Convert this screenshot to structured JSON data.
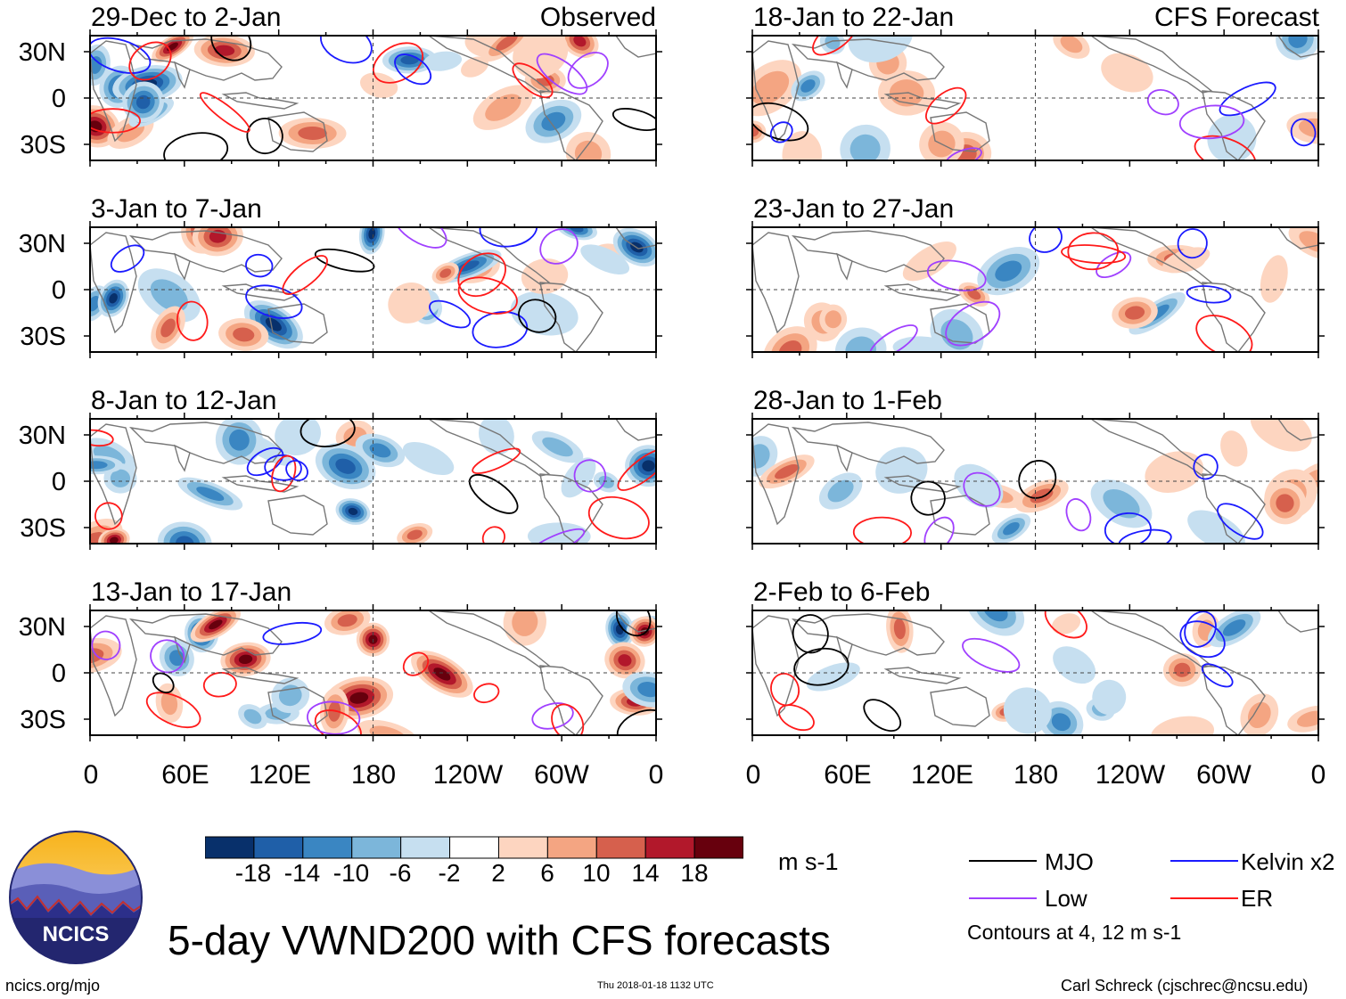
{
  "header": {
    "observed_label": "Observed",
    "forecast_label": "CFS Forecast"
  },
  "panels_left": [
    {
      "title": "29-Dec to 2-Jan"
    },
    {
      "title": "3-Jan to 7-Jan"
    },
    {
      "title": "8-Jan to 12-Jan"
    },
    {
      "title": "13-Jan to 17-Jan"
    }
  ],
  "panels_right": [
    {
      "title": "18-Jan to 22-Jan"
    },
    {
      "title": "23-Jan to 27-Jan"
    },
    {
      "title": "28-Jan to 1-Feb"
    },
    {
      "title": "2-Feb to 6-Feb"
    }
  ],
  "lat_labels": [
    "30N",
    "0",
    "30S"
  ],
  "lon_labels": [
    "0",
    "60E",
    "120E",
    "180",
    "120W",
    "60W",
    "0"
  ],
  "colorbar": {
    "ticks": [
      "-18",
      "-14",
      "-10",
      "-6",
      "-2",
      "2",
      "6",
      "10",
      "14",
      "18"
    ],
    "units": "m s-1",
    "colors": [
      "#08306b",
      "#1f5fa8",
      "#3a86c2",
      "#7cb6da",
      "#c6dff0",
      "#ffffff",
      "#fdd5c0",
      "#f4a582",
      "#d6604d",
      "#b2182b",
      "#67000d"
    ]
  },
  "legend": {
    "items": [
      {
        "label": "MJO",
        "color": "#000000"
      },
      {
        "label": "Kelvin x2",
        "color": "#1a1aff"
      },
      {
        "label": "Low",
        "color": "#a040ff"
      },
      {
        "label": "ER",
        "color": "#ff1a1a"
      }
    ],
    "contours_note": "Contours at 4, 12 m s-1"
  },
  "logo": {
    "text": "NCICS"
  },
  "footer": {
    "title": "5-day VWND200 with CFS forecasts",
    "url": "ncics.org/mjo",
    "timestamp": "Thu 2018-01-18 1132 UTC",
    "credit": "Carl Schreck (cjschrec@ncsu.edu)"
  }
}
